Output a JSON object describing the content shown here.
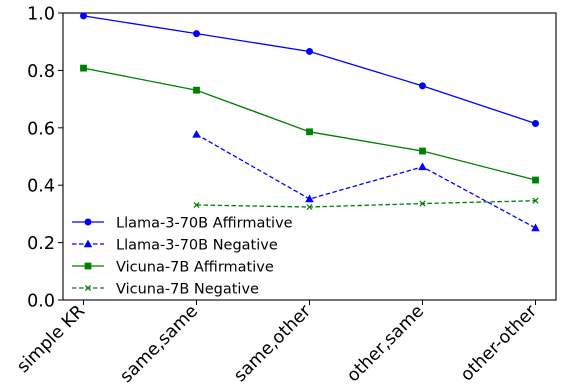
{
  "chart_data": {
    "type": "line",
    "categories": [
      "simple KR",
      "same,same",
      "same,other",
      "other,same",
      "other-other"
    ],
    "ylim": [
      0.0,
      1.0
    ],
    "yticks": [
      "0.0",
      "0.2",
      "0.4",
      "0.6",
      "0.8",
      "1.0"
    ],
    "ytick_values": [
      0.0,
      0.2,
      0.4,
      0.6,
      0.8,
      1.0
    ],
    "grid": false,
    "legend_position": "lower-left",
    "series": [
      {
        "name": "Llama-3-70B Affirmative",
        "values": [
          0.99,
          0.928,
          0.866,
          0.746,
          0.615
        ],
        "color": "#0000ff",
        "line_style": "solid",
        "marker": "circle"
      },
      {
        "name": "Llama-3-70B Negative",
        "values": [
          null,
          0.577,
          0.352,
          0.464,
          0.251
        ],
        "color": "#0000ff",
        "line_style": "dashed",
        "marker": "triangle"
      },
      {
        "name": "Vicuna-7B Affirmative",
        "values": [
          0.808,
          0.731,
          0.586,
          0.519,
          0.418
        ],
        "color": "#008000",
        "line_style": "solid",
        "marker": "square"
      },
      {
        "name": "Vicuna-7B Negative",
        "values": [
          null,
          0.331,
          0.324,
          0.336,
          0.346
        ],
        "color": "#008000",
        "line_style": "dashed",
        "marker": "x"
      }
    ]
  }
}
